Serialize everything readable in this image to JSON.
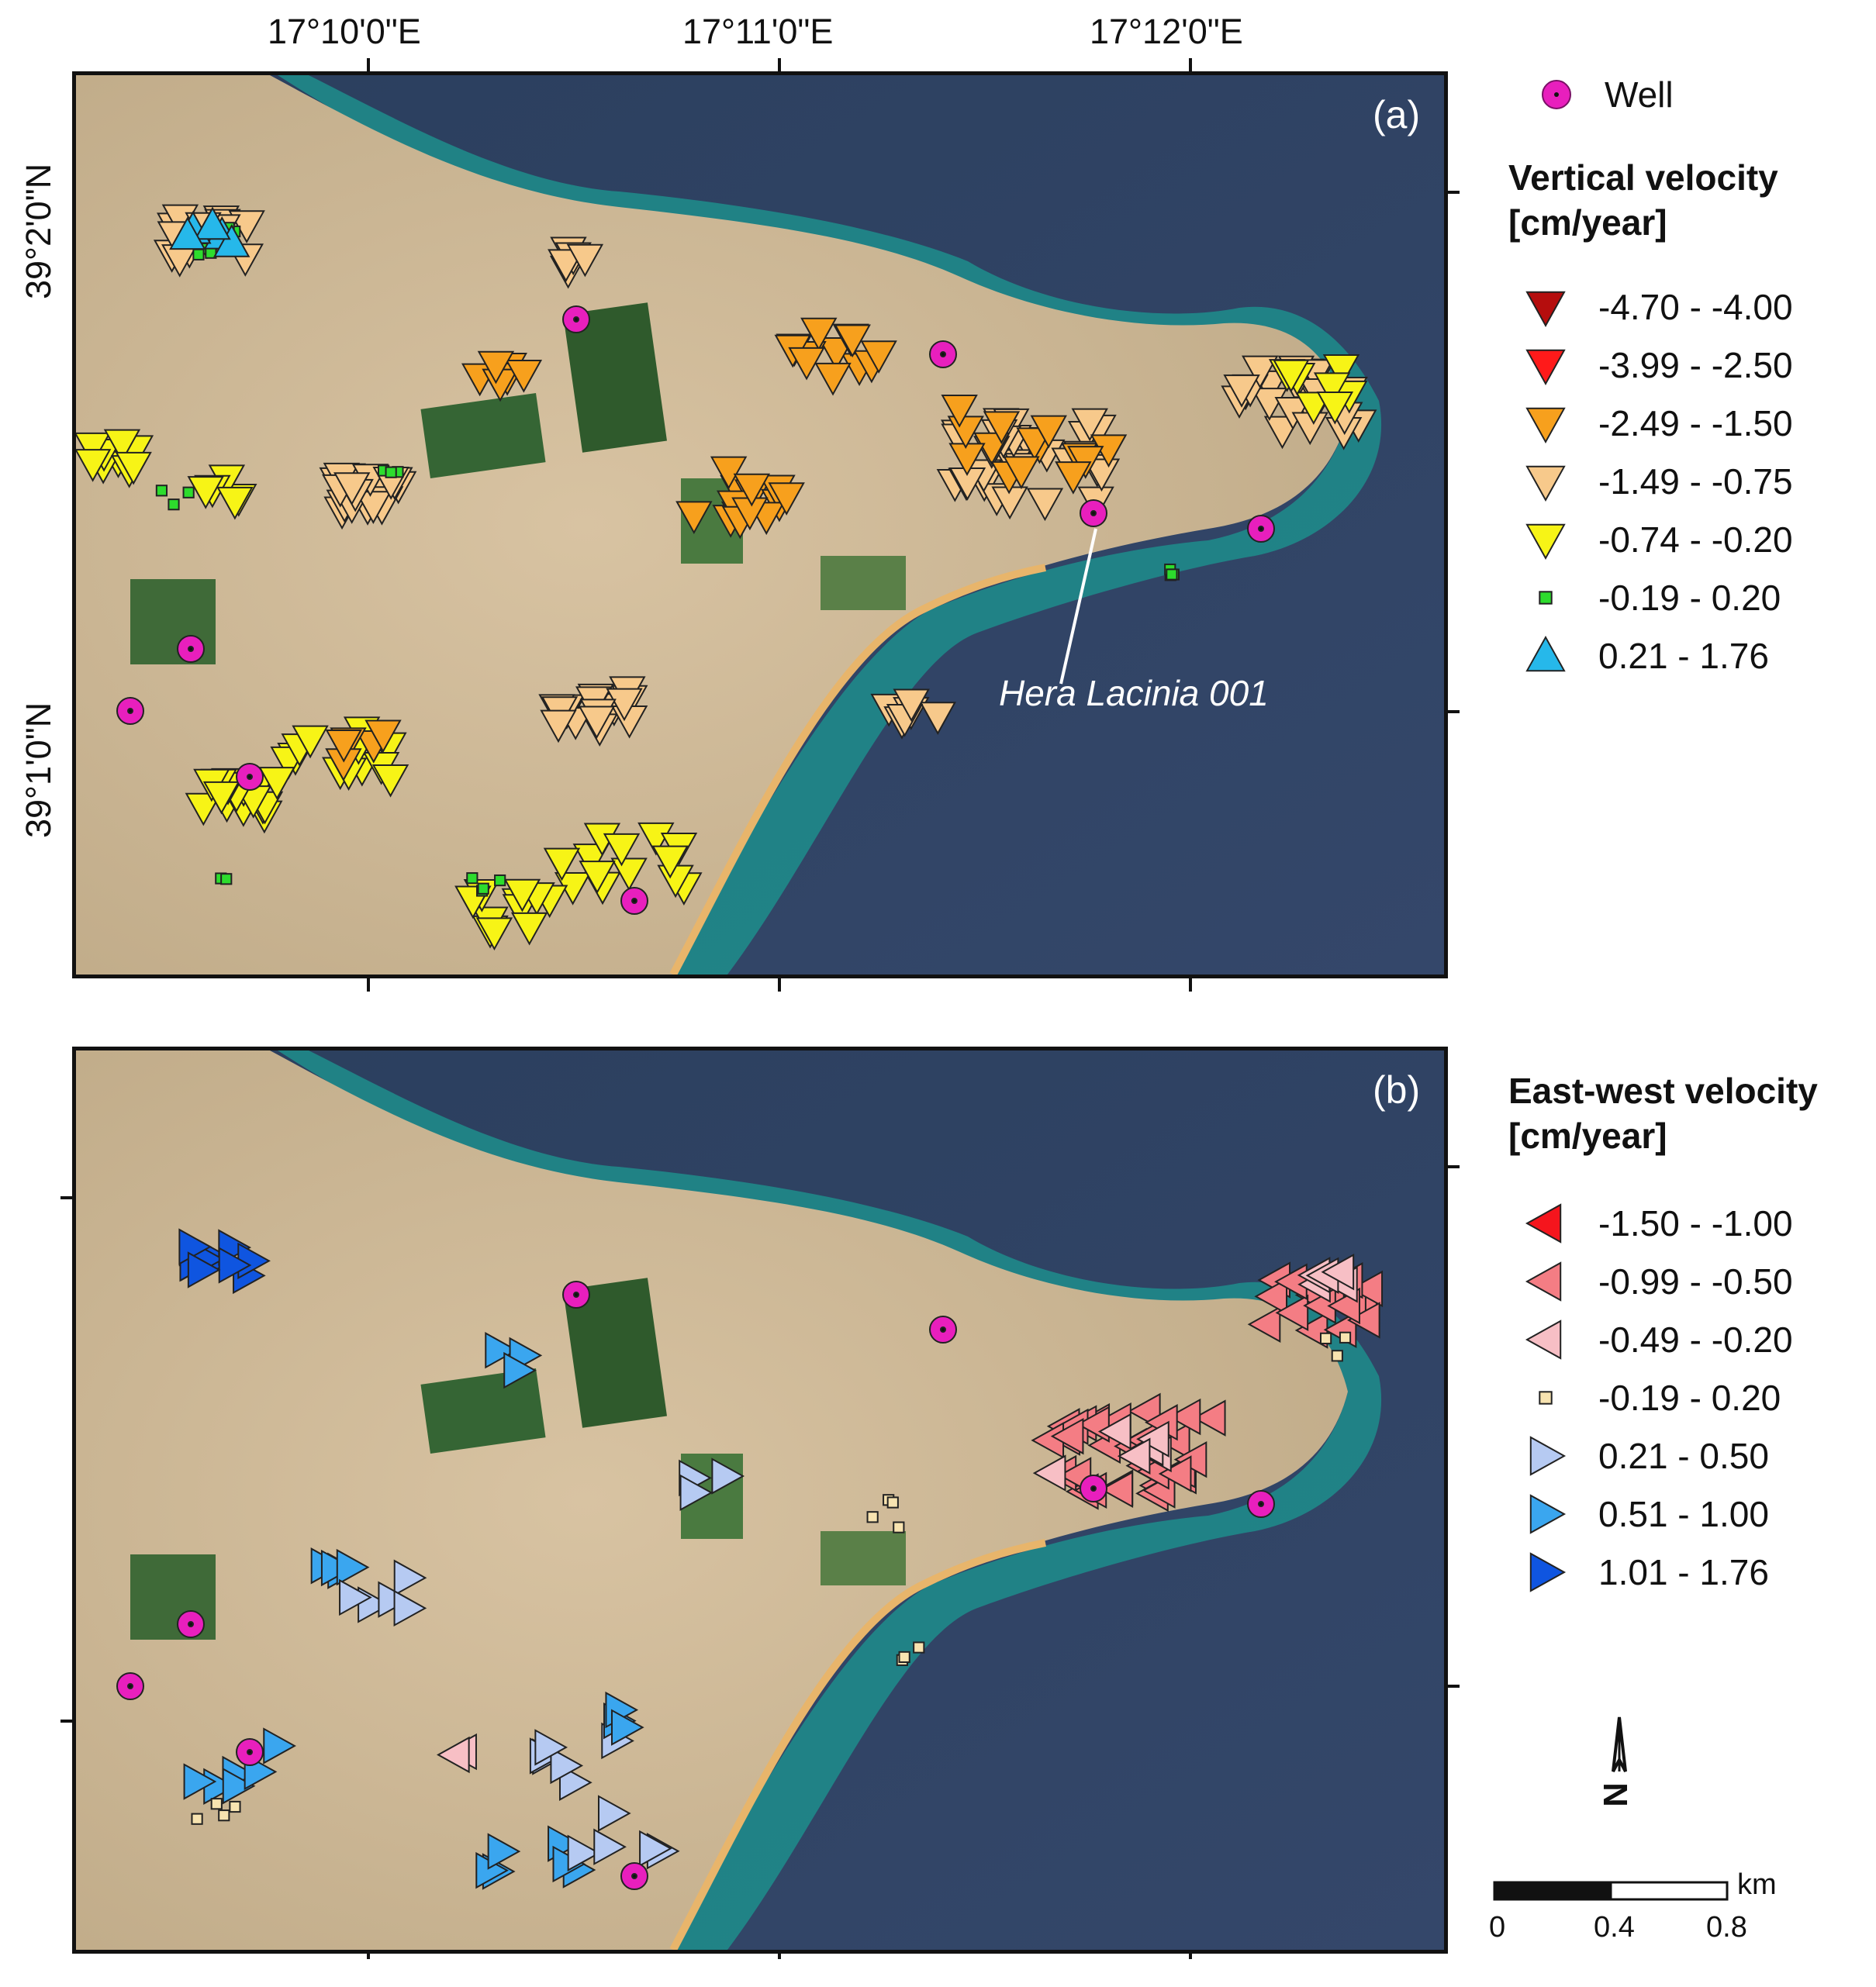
{
  "panels": [
    {
      "id": "a",
      "tag": "(a)",
      "annotation": "Hera Lacinia 001"
    },
    {
      "id": "b",
      "tag": "(b)"
    }
  ],
  "axes": {
    "lon_labels": [
      "17°10'0\"E",
      "17°11'0\"E",
      "17°12'0\"E"
    ],
    "lat_labels": [
      "39°2'0\"N",
      "39°1'0\"N"
    ]
  },
  "legend_well": {
    "label": "Well",
    "color": "#e81fbd"
  },
  "legend_vertical": {
    "title_line1": "Vertical velocity",
    "title_line2": "[cm/year]",
    "classes": [
      {
        "range": "-4.70 - -4.00",
        "color": "#b50d0d",
        "shape": "triangle-down"
      },
      {
        "range": "-3.99 - -2.50",
        "color": "#ff1a1a",
        "shape": "triangle-down"
      },
      {
        "range": "-2.49 - -1.50",
        "color": "#f7a01d",
        "shape": "triangle-down"
      },
      {
        "range": "-1.49 - -0.75",
        "color": "#f7c98b",
        "shape": "triangle-down"
      },
      {
        "range": "-0.74 - -0.20",
        "color": "#f7f416",
        "shape": "triangle-down"
      },
      {
        "range": "-0.19 - 0.20",
        "color": "#2ddc2d",
        "shape": "square"
      },
      {
        "range": "0.21 - 1.76",
        "color": "#26b8ea",
        "shape": "triangle-up"
      }
    ]
  },
  "legend_eastwest": {
    "title_line1": "East-west velocity",
    "title_line2": "[cm/year]",
    "classes": [
      {
        "range": "-1.50 - -1.00",
        "color": "#f5151d",
        "shape": "triangle-left"
      },
      {
        "range": "-0.99 - -0.50",
        "color": "#f47d84",
        "shape": "triangle-left"
      },
      {
        "range": "-0.49 - -0.20",
        "color": "#f7bfc5",
        "shape": "triangle-left"
      },
      {
        "range": "-0.19 - 0.20",
        "color": "#f7e3b0",
        "shape": "square"
      },
      {
        "range": "0.21 - 0.50",
        "color": "#b6caf2",
        "shape": "triangle-right"
      },
      {
        "range": "0.51 - 1.00",
        "color": "#3aa6ef",
        "shape": "triangle-right"
      },
      {
        "range": "1.01 - 1.76",
        "color": "#0f55e0",
        "shape": "triangle-right"
      }
    ]
  },
  "scale_bar": {
    "unit": "km",
    "ticks": [
      "0",
      "0.4",
      "0.8"
    ]
  },
  "north_arrow": {
    "letter": "N"
  }
}
